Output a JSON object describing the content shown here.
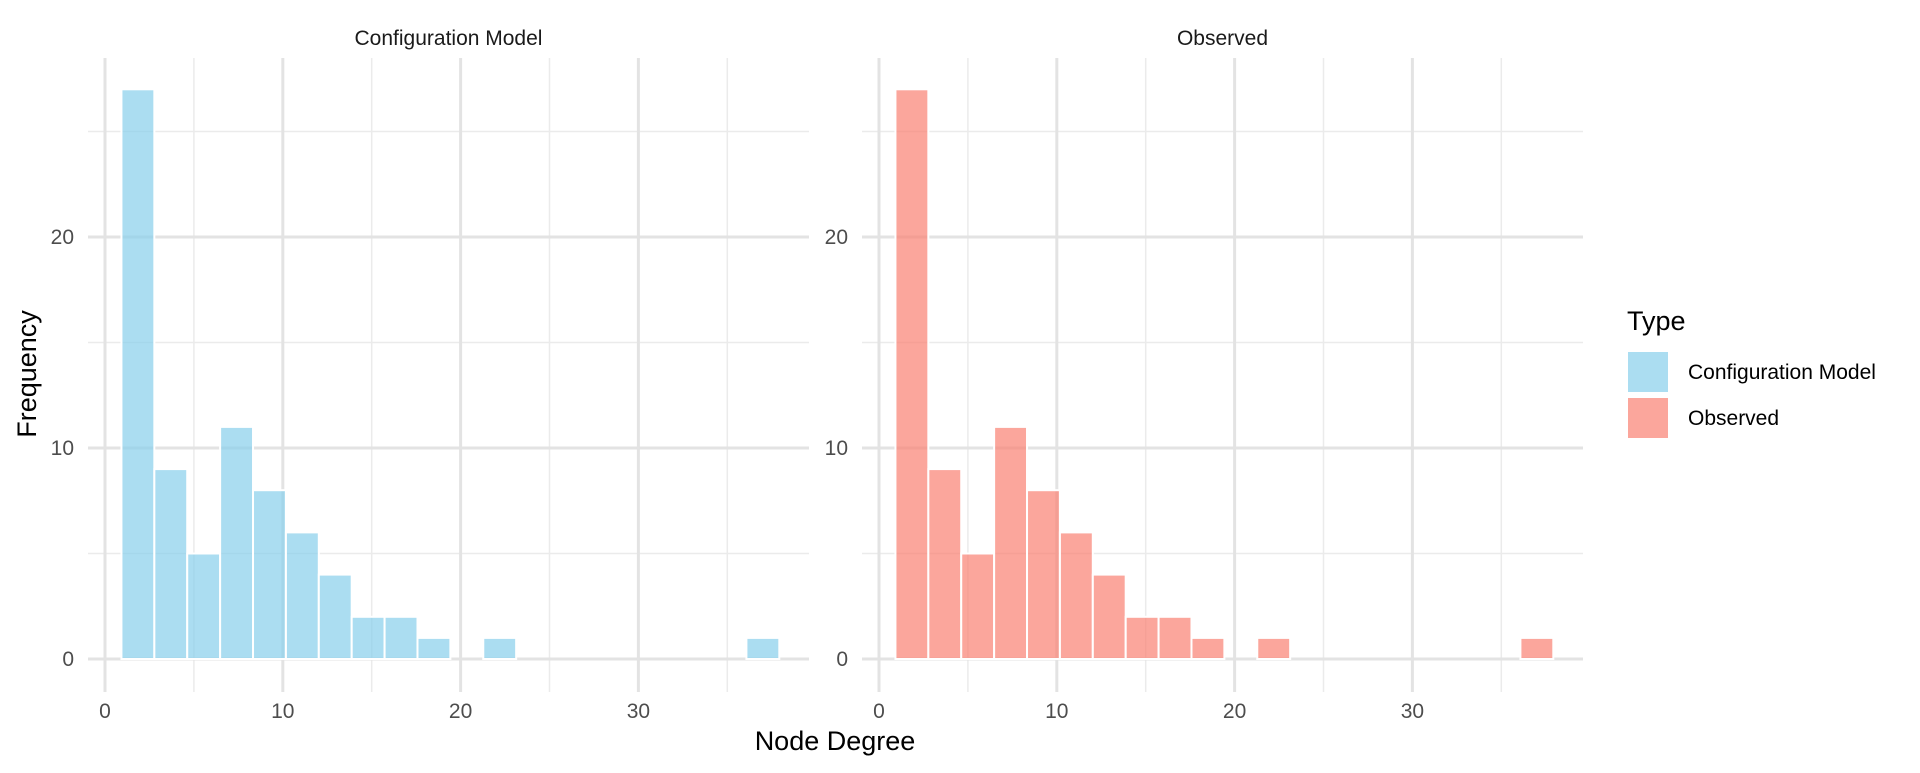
{
  "chart_data": {
    "type": "bar",
    "x_label": "Node Degree",
    "y_label": "Frequency",
    "x_range": [
      0,
      39
    ],
    "y_range": [
      0,
      28
    ],
    "x_ticks": [
      0,
      10,
      20,
      30
    ],
    "y_ticks": [
      0,
      10,
      20
    ],
    "grid": true,
    "bin_width": 1.85,
    "bins": [
      {
        "x": 1.85,
        "count": 27
      },
      {
        "x": 3.7,
        "count": 9
      },
      {
        "x": 5.55,
        "count": 5
      },
      {
        "x": 7.4,
        "count": 11
      },
      {
        "x": 9.25,
        "count": 8
      },
      {
        "x": 11.1,
        "count": 6
      },
      {
        "x": 12.95,
        "count": 4
      },
      {
        "x": 14.8,
        "count": 2
      },
      {
        "x": 16.65,
        "count": 2
      },
      {
        "x": 18.5,
        "count": 1
      },
      {
        "x": 22.2,
        "count": 1
      },
      {
        "x": 37.0,
        "count": 1
      }
    ],
    "panels": [
      {
        "title": "Configuration Model",
        "color": "#87CEEB"
      },
      {
        "title": "Observed",
        "color": "#FA8072"
      }
    ],
    "legend": {
      "title": "Type",
      "position": "right",
      "items": [
        {
          "label": "Configuration Model",
          "color": "#87CEEB"
        },
        {
          "label": "Observed",
          "color": "#FA8072"
        }
      ]
    }
  }
}
